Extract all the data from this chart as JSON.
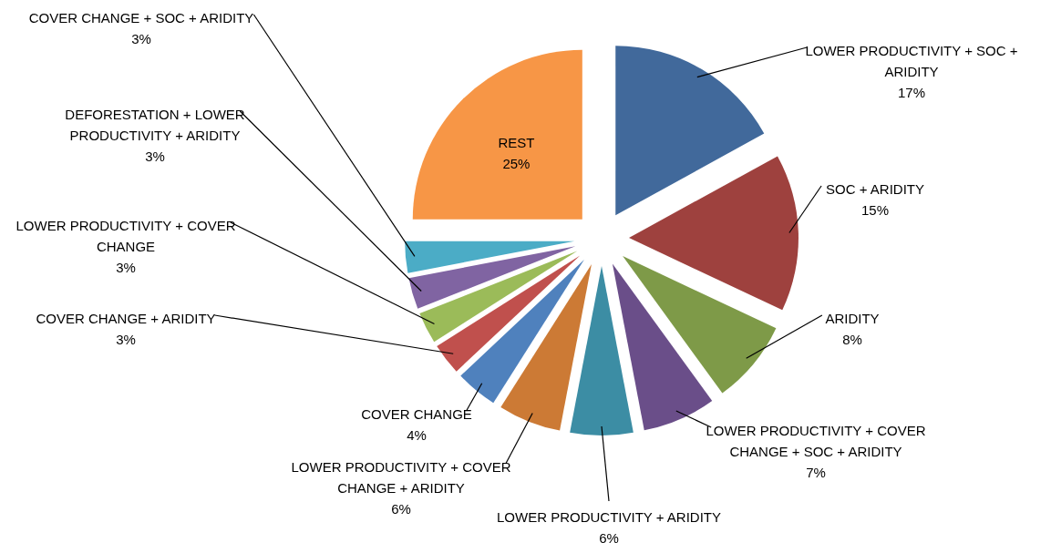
{
  "chart_data": {
    "type": "pie",
    "categories": [
      "LOWER PRODUCTIVITY + SOC + ARIDITY",
      "SOC + ARIDITY",
      "ARIDITY",
      "LOWER PRODUCTIVITY + COVER CHANGE + SOC + ARIDITY",
      "LOWER PRODUCTIVITY + ARIDITY",
      "LOWER PRODUCTIVITY + COVER CHANGE + ARIDITY",
      "COVER CHANGE",
      "COVER CHANGE + ARIDITY",
      "LOWER PRODUCTIVITY + COVER CHANGE",
      "DEFORESTATION + LOWER PRODUCTIVITY + ARIDITY",
      "COVER CHANGE + SOC + ARIDITY",
      "REST"
    ],
    "values": [
      17,
      15,
      8,
      7,
      6,
      6,
      4,
      3,
      3,
      3,
      3,
      25
    ],
    "value_labels": [
      "17%",
      "15%",
      "8%",
      "7%",
      "6%",
      "6%",
      "4%",
      "3%",
      "3%",
      "3%",
      "3%",
      "25%"
    ],
    "colors": [
      "#41699b",
      "#9e413e",
      "#7e9a48",
      "#6a4e89",
      "#3c8da4",
      "#cc7a35",
      "#4f81bd",
      "#c0504d",
      "#9bbb59",
      "#8064a2",
      "#4bacc6",
      "#f79646"
    ]
  }
}
